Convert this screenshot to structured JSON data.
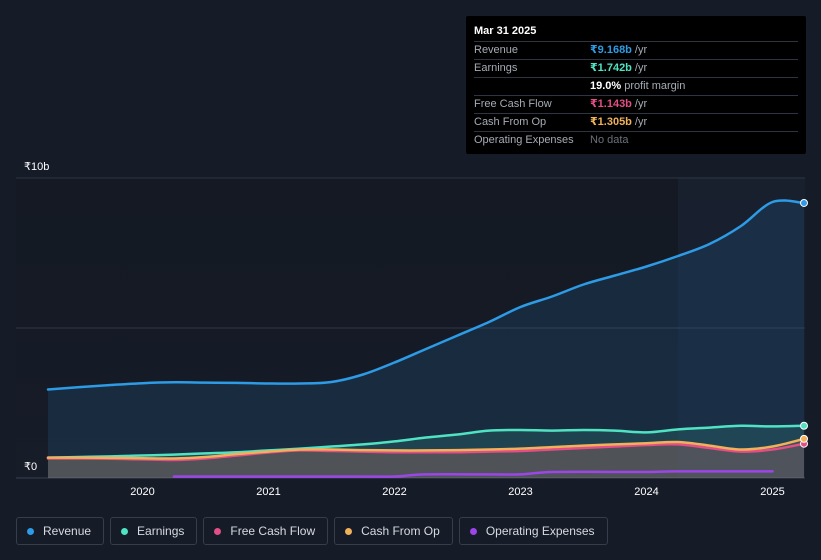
{
  "tooltip": {
    "date": "Mar 31 2025",
    "rows": [
      {
        "label": "Revenue",
        "value": "₹9.168b",
        "unit": "/yr",
        "color": "#2d9be5"
      },
      {
        "label": "Earnings",
        "value": "₹1.742b",
        "unit": "/yr",
        "color": "#4fe3c3"
      },
      {
        "label": "",
        "value": "19.0%",
        "unit": "profit margin",
        "color": "#ffffff"
      },
      {
        "label": "Free Cash Flow",
        "value": "₹1.143b",
        "unit": "/yr",
        "color": "#e24e85"
      },
      {
        "label": "Cash From Op",
        "value": "₹1.305b",
        "unit": "/yr",
        "color": "#f0b15a"
      },
      {
        "label": "Operating Expenses",
        "value": "No data",
        "unit": "",
        "color": "#6b717c"
      }
    ]
  },
  "legend": [
    {
      "label": "Revenue",
      "color": "#2d9be5"
    },
    {
      "label": "Earnings",
      "color": "#4fe3c3"
    },
    {
      "label": "Free Cash Flow",
      "color": "#e24e85"
    },
    {
      "label": "Cash From Op",
      "color": "#f0b15a"
    },
    {
      "label": "Operating Expenses",
      "color": "#9c45e8"
    }
  ],
  "chart_data": {
    "type": "area",
    "y_tick_labels": [
      {
        "value": 10,
        "label": "₹10b"
      },
      {
        "value": 0,
        "label": "₹0"
      }
    ],
    "ylim": [
      0,
      10
    ],
    "xlim": [
      2019.25,
      2025.25
    ],
    "x_ticks": [
      2020,
      2021,
      2022,
      2023,
      2024,
      2025
    ],
    "x_tick_labels": [
      "2020",
      "2021",
      "2022",
      "2023",
      "2024",
      "2025"
    ],
    "grid": true,
    "highlight_from": 2024.25,
    "series": [
      {
        "name": "Revenue",
        "color": "#2d9be5",
        "fill": true,
        "x": [
          2019.25,
          2019.5,
          2019.75,
          2020.0,
          2020.25,
          2020.5,
          2020.75,
          2021.0,
          2021.25,
          2021.5,
          2021.75,
          2022.0,
          2022.25,
          2022.5,
          2022.75,
          2023.0,
          2023.25,
          2023.5,
          2023.75,
          2024.0,
          2024.25,
          2024.5,
          2024.75,
          2025.0,
          2025.25
        ],
        "y": [
          2.95,
          3.03,
          3.1,
          3.16,
          3.19,
          3.18,
          3.17,
          3.15,
          3.15,
          3.2,
          3.45,
          3.85,
          4.3,
          4.75,
          5.2,
          5.7,
          6.05,
          6.45,
          6.75,
          7.05,
          7.4,
          7.8,
          8.4,
          9.2,
          9.168
        ]
      },
      {
        "name": "Earnings",
        "color": "#4fe3c3",
        "fill": true,
        "x": [
          2019.25,
          2019.5,
          2019.75,
          2020.0,
          2020.25,
          2020.5,
          2020.75,
          2021.0,
          2021.25,
          2021.5,
          2021.75,
          2022.0,
          2022.25,
          2022.5,
          2022.75,
          2023.0,
          2023.25,
          2023.5,
          2023.75,
          2024.0,
          2024.25,
          2024.5,
          2024.75,
          2025.0,
          2025.25
        ],
        "y": [
          0.68,
          0.7,
          0.72,
          0.75,
          0.78,
          0.82,
          0.86,
          0.92,
          0.98,
          1.05,
          1.12,
          1.22,
          1.35,
          1.45,
          1.58,
          1.6,
          1.58,
          1.6,
          1.58,
          1.52,
          1.62,
          1.68,
          1.74,
          1.72,
          1.742
        ]
      },
      {
        "name": "Free Cash Flow",
        "color": "#e24e85",
        "fill": true,
        "x": [
          2019.25,
          2019.5,
          2019.75,
          2020.0,
          2020.25,
          2020.5,
          2020.75,
          2021.0,
          2021.25,
          2021.5,
          2021.75,
          2022.0,
          2022.25,
          2022.5,
          2022.75,
          2023.0,
          2023.25,
          2023.5,
          2023.75,
          2024.0,
          2024.25,
          2024.5,
          2024.75,
          2025.0,
          2025.25
        ],
        "y": [
          0.65,
          0.65,
          0.64,
          0.62,
          0.6,
          0.65,
          0.75,
          0.85,
          0.92,
          0.9,
          0.88,
          0.86,
          0.86,
          0.86,
          0.88,
          0.9,
          0.95,
          1.0,
          1.05,
          1.1,
          1.12,
          1.0,
          0.88,
          0.95,
          1.143
        ]
      },
      {
        "name": "Cash From Op",
        "color": "#f0b15a",
        "fill": true,
        "x": [
          2019.25,
          2019.5,
          2019.75,
          2020.0,
          2020.25,
          2020.5,
          2020.75,
          2021.0,
          2021.25,
          2021.5,
          2021.75,
          2022.0,
          2022.25,
          2022.5,
          2022.75,
          2023.0,
          2023.25,
          2023.5,
          2023.75,
          2024.0,
          2024.25,
          2024.5,
          2024.75,
          2025.0,
          2025.25
        ],
        "y": [
          0.68,
          0.68,
          0.67,
          0.66,
          0.65,
          0.7,
          0.8,
          0.88,
          0.95,
          0.95,
          0.93,
          0.92,
          0.92,
          0.93,
          0.95,
          0.98,
          1.03,
          1.08,
          1.12,
          1.16,
          1.2,
          1.08,
          0.95,
          1.05,
          1.305
        ]
      },
      {
        "name": "Operating Expenses",
        "color": "#9c45e8",
        "fill": false,
        "x": [
          2020.25,
          2020.75,
          2021.25,
          2021.75,
          2022.0,
          2022.25,
          2022.75,
          2023.0,
          2023.25,
          2023.75,
          2024.0,
          2024.25,
          2024.75,
          2025.0
        ],
        "y": [
          0.05,
          0.05,
          0.05,
          0.05,
          0.05,
          0.12,
          0.12,
          0.12,
          0.2,
          0.2,
          0.2,
          0.22,
          0.22,
          0.22
        ]
      }
    ]
  }
}
